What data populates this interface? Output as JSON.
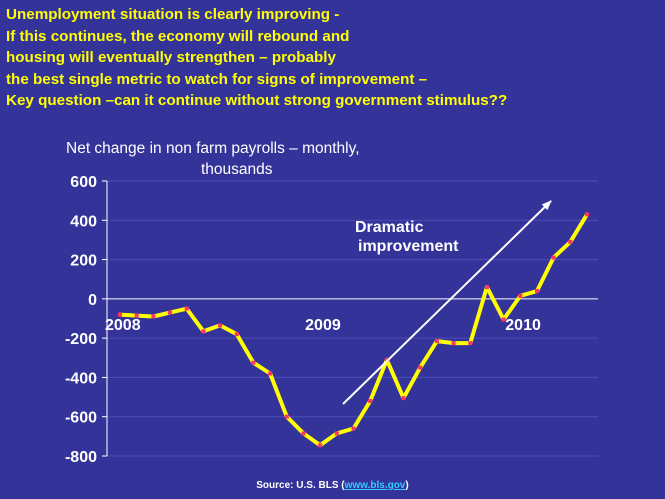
{
  "headline": [
    "Unemployment situation is clearly improving -",
    "If this continues, the economy will rebound and",
    "housing will eventually strengthen – probably",
    "the best single metric to watch for signs of improvement –",
    "Key question –can it continue without strong government stimulus??"
  ],
  "chart_title_line1": "Net change in non farm payrolls – monthly,",
  "chart_title_line2": "thousands",
  "annotation_line1": "Dramatic",
  "annotation_line2": "improvement",
  "source_prefix": "Source: U.S. BLS (",
  "source_link": "www.bls.gov",
  "source_suffix": ")",
  "colors": {
    "background": "#333399",
    "headline": "#ffff00",
    "line": "#ffff00",
    "marker": "#ff3366",
    "axis": "#ffffff",
    "link": "#33ccff"
  },
  "chart_data": {
    "type": "line",
    "title": "Net change in non farm payrolls – monthly, thousands",
    "xlabel": "",
    "ylabel": "",
    "ylim": [
      -800,
      600
    ],
    "yticks": [
      600,
      400,
      200,
      0,
      -200,
      -400,
      -600,
      -800
    ],
    "year_labels": [
      {
        "label": "2008",
        "month_index": 0
      },
      {
        "label": "2009",
        "month_index": 12
      },
      {
        "label": "2010",
        "month_index": 24
      }
    ],
    "grid": true,
    "legend": "none",
    "x": [
      "2008-01",
      "2008-02",
      "2008-03",
      "2008-04",
      "2008-05",
      "2008-06",
      "2008-07",
      "2008-08",
      "2008-09",
      "2008-10",
      "2008-11",
      "2008-12",
      "2009-01",
      "2009-02",
      "2009-03",
      "2009-04",
      "2009-05",
      "2009-06",
      "2009-07",
      "2009-08",
      "2009-09",
      "2009-10",
      "2009-11",
      "2009-12",
      "2010-01",
      "2010-02",
      "2010-03",
      "2010-04",
      "2010-05"
    ],
    "series": [
      {
        "values": [
          -80,
          -85,
          -90,
          -70,
          -50,
          -165,
          -135,
          -180,
          -325,
          -380,
          -600,
          -685,
          -745,
          -685,
          -660,
          -520,
          -310,
          -505,
          -350,
          -215,
          -225,
          -225,
          60,
          -105,
          15,
          40,
          210,
          290,
          430
        ]
      }
    ]
  }
}
